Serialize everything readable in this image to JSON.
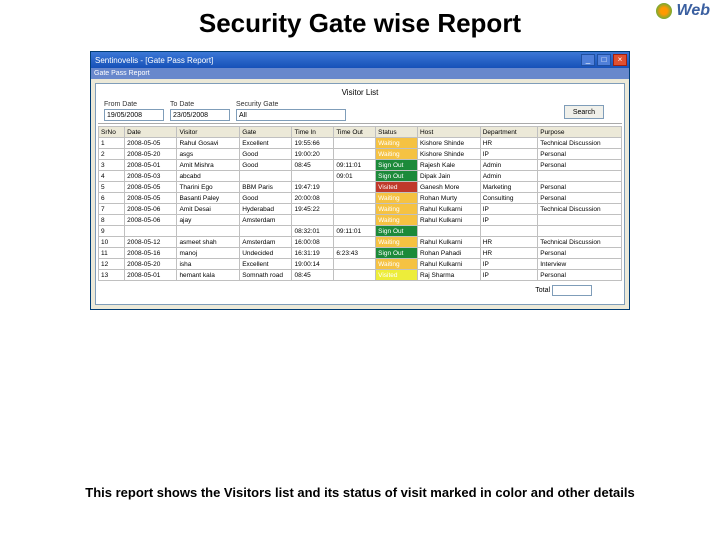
{
  "slide_title": "Security Gate wise Report",
  "logo_text": "Web",
  "window": {
    "title": "Sentinovelis - [Gate Pass Report]",
    "mdi_title": "Gate Pass Report"
  },
  "report": {
    "title": "Visitor List",
    "filters": {
      "from_label": "From Date",
      "to_label": "To Date",
      "group_label": "Security Gate",
      "from_value": "19/05/2008",
      "to_value": "23/05/2008",
      "group_value": "All",
      "search_label": "Search"
    },
    "columns": [
      "SrNo",
      "Date",
      "Visitor",
      "Gate",
      "Time In",
      "Time Out",
      "Status",
      "Host",
      "Department",
      "Purpose"
    ],
    "col_widths": [
      "5%",
      "10%",
      "12%",
      "10%",
      "8%",
      "8%",
      "8%",
      "12%",
      "11%",
      "16%"
    ],
    "rows": [
      {
        "c": [
          "1",
          "2008-05-05",
          "Rahul Gosavi",
          "Excellent",
          "19:55:66",
          "",
          "Waiting",
          "Kishore Shinde",
          "HR",
          "Technical Discussion"
        ],
        "status_bg": "#f5c242"
      },
      {
        "c": [
          "2",
          "2008-05-20",
          "asgs",
          "Good",
          "19:00:20",
          "",
          "Waiting",
          "Kishore Shinde",
          "IP",
          "Personal"
        ],
        "status_bg": "#f5c242"
      },
      {
        "c": [
          "3",
          "2008-05-01",
          "Amit Mishra",
          "Good",
          "08:45",
          "09:11:01",
          "Sign Out",
          "Rajesh Kale",
          "Admin",
          "Personal"
        ],
        "status_bg": "#1c8a3a"
      },
      {
        "c": [
          "4",
          "2008-05-03",
          "abcabd",
          "",
          "",
          "09:01",
          "Sign Out",
          "Dipak Jain",
          "Admin",
          ""
        ],
        "status_bg": "#1c8a3a"
      },
      {
        "c": [
          "5",
          "2008-05-05",
          "Tharini Ego",
          "BBM Paris",
          "19:47:19",
          "",
          "Visited",
          "Ganesh More",
          "Marketing",
          "Personal"
        ],
        "status_bg": "#c0392b"
      },
      {
        "c": [
          "6",
          "2008-05-05",
          "Basanti Paley",
          "Good",
          "20:00:08",
          "",
          "Waiting",
          "Rohan Murty",
          "Consulting",
          "Personal"
        ],
        "status_bg": "#f5c242"
      },
      {
        "c": [
          "7",
          "2008-05-06",
          "Amit Desai",
          "Hyderabad",
          "19:45:22",
          "",
          "Waiting",
          "Rahul Kulkarni",
          "IP",
          "Technical Discussion"
        ],
        "status_bg": "#f5c242"
      },
      {
        "c": [
          "8",
          "2008-05-06",
          "ajay",
          "Amsterdam",
          "",
          "",
          "Waiting",
          "Rahul Kulkarni",
          "IP",
          ""
        ],
        "status_bg": "#f5c242"
      },
      {
        "c": [
          "9",
          "",
          "",
          "",
          "08:32:01",
          "09:11:01",
          "Sign Out",
          "",
          "",
          ""
        ],
        "status_bg": "#1c8a3a"
      },
      {
        "c": [
          "10",
          "2008-05-12",
          "asmeet shah",
          "Amsterdam",
          "16:00:08",
          "",
          "Waiting",
          "Rahul Kulkarni",
          "HR",
          "Technical Discussion"
        ],
        "status_bg": "#f5c242"
      },
      {
        "c": [
          "11",
          "2008-05-16",
          "manoj",
          "Undecided",
          "16:31:19",
          "6:23:43",
          "Sign Out",
          "Rohan Pahadi",
          "HR",
          "Personal"
        ],
        "status_bg": "#1c8a3a"
      },
      {
        "c": [
          "12",
          "2008-05-20",
          "isha",
          "Excellent",
          "19:00:14",
          "",
          "Waiting",
          "Rahul Kulkarni",
          "IP",
          "Interview"
        ],
        "status_bg": "#f5c242"
      },
      {
        "c": [
          "13",
          "2008-05-01",
          "hemant kala",
          "Somnath road",
          "08:45",
          "",
          "Visited",
          "Raj Sharma",
          "IP",
          "Personal"
        ],
        "status_bg": "#eded3a"
      }
    ],
    "total_label": "Total",
    "total_value": ""
  },
  "caption": "This report shows the Visitors list and its status of visit marked in color and other details"
}
